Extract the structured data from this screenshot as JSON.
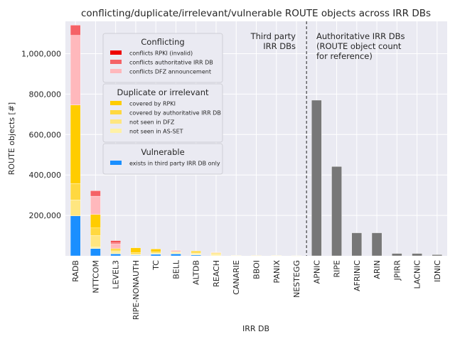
{
  "chart_data": {
    "type": "bar",
    "stacked": true,
    "title": "conflicting/duplicate/irrelevant/vulnerable ROUTE objects across IRR DBs",
    "xlabel": "IRR DB",
    "ylabel": "ROUTE objects [#]",
    "ylim": [
      0,
      1160000
    ],
    "yticks": [
      200000,
      400000,
      600000,
      800000,
      1000000
    ],
    "ytick_labels": [
      "200,000",
      "400,000",
      "600,000",
      "800,000",
      "1,000,000"
    ],
    "categories": [
      "RADB",
      "NTTCOM",
      "LEVEL3",
      "RIPE-NONAUTH",
      "TC",
      "BELL",
      "ALTDB",
      "REACH",
      "CANARIE",
      "BBOI",
      "PANIX",
      "NESTEGG",
      "APNIC",
      "RIPE",
      "AFRINIC",
      "ARIN",
      "JPIRR",
      "LACNIC",
      "IDNIC"
    ],
    "series": [
      {
        "name": "exists in third party IRR DB only",
        "color": "#1a8fff",
        "values": [
          198000,
          36000,
          10000,
          3000,
          8000,
          10000,
          5000,
          0,
          0,
          0,
          0,
          0,
          0,
          0,
          0,
          0,
          0,
          0,
          0
        ]
      },
      {
        "name": "not seen in AS-SET",
        "color": "#fff1a6",
        "values": [
          0,
          7000,
          5000,
          2000,
          2000,
          2000,
          3000,
          6000,
          1500,
          1000,
          1200,
          500,
          0,
          0,
          0,
          0,
          0,
          0,
          0
        ]
      },
      {
        "name": "not seen in DFZ",
        "color": "#ffe680",
        "values": [
          78000,
          57000,
          8000,
          3000,
          4000,
          3000,
          5000,
          6000,
          1500,
          1000,
          1300,
          500,
          0,
          0,
          0,
          0,
          0,
          0,
          0
        ]
      },
      {
        "name": "covered by authoritative IRR DB",
        "color": "#ffd840",
        "values": [
          82000,
          38000,
          7000,
          8000,
          6000,
          3000,
          5000,
          4000,
          0,
          0,
          0,
          0,
          0,
          0,
          0,
          0,
          0,
          0,
          0
        ]
      },
      {
        "name": "covered by RPKI",
        "color": "#ffcc00",
        "values": [
          388000,
          67000,
          6000,
          24000,
          14000,
          2000,
          6000,
          0,
          0,
          0,
          0,
          0,
          0,
          0,
          0,
          0,
          0,
          0,
          0
        ]
      },
      {
        "name": "conflicts DFZ announcement",
        "color": "#ffb8bc",
        "values": [
          345000,
          90000,
          24000,
          0,
          0,
          6000,
          0,
          2000,
          0,
          0,
          0,
          0,
          0,
          0,
          0,
          0,
          0,
          0,
          0
        ]
      },
      {
        "name": "conflicts authoritative IRR DB",
        "color": "#f56266",
        "values": [
          50000,
          27000,
          10000,
          0,
          0,
          2000,
          0,
          0,
          0,
          0,
          0,
          0,
          0,
          0,
          0,
          0,
          0,
          0,
          0
        ]
      },
      {
        "name": "conflicts RPKI (invalid)",
        "color": "#ee0000",
        "values": [
          0,
          0,
          5000,
          0,
          0,
          0,
          0,
          0,
          0,
          0,
          0,
          0,
          0,
          0,
          0,
          0,
          0,
          0,
          0
        ]
      },
      {
        "name": "ROUTE object count",
        "color": "#777777",
        "values": [
          0,
          0,
          0,
          0,
          0,
          0,
          0,
          0,
          0,
          0,
          0,
          0,
          770000,
          442000,
          114000,
          114000,
          12000,
          12000,
          6000
        ]
      }
    ],
    "divider_after_index": 11,
    "legend": {
      "placement": "upper-left",
      "groups": [
        {
          "title": "Conflicting",
          "items": [
            "conflicts RPKI (invalid)",
            "conflicts authoritative IRR DB",
            "conflicts DFZ announcement"
          ]
        },
        {
          "title": "Duplicate or irrelevant",
          "items": [
            "covered by RPKI",
            "covered by authoritative IRR DB",
            "not seen in DFZ",
            "not seen in AS-SET"
          ]
        },
        {
          "title": "Vulnerable",
          "items": [
            "exists in third party IRR DB only"
          ]
        }
      ]
    },
    "annotations": {
      "third_party": [
        "Third party",
        "IRR DBs"
      ],
      "authoritative": [
        "Authoritative IRR DBs",
        "(ROUTE object count",
        "for reference)"
      ]
    }
  }
}
